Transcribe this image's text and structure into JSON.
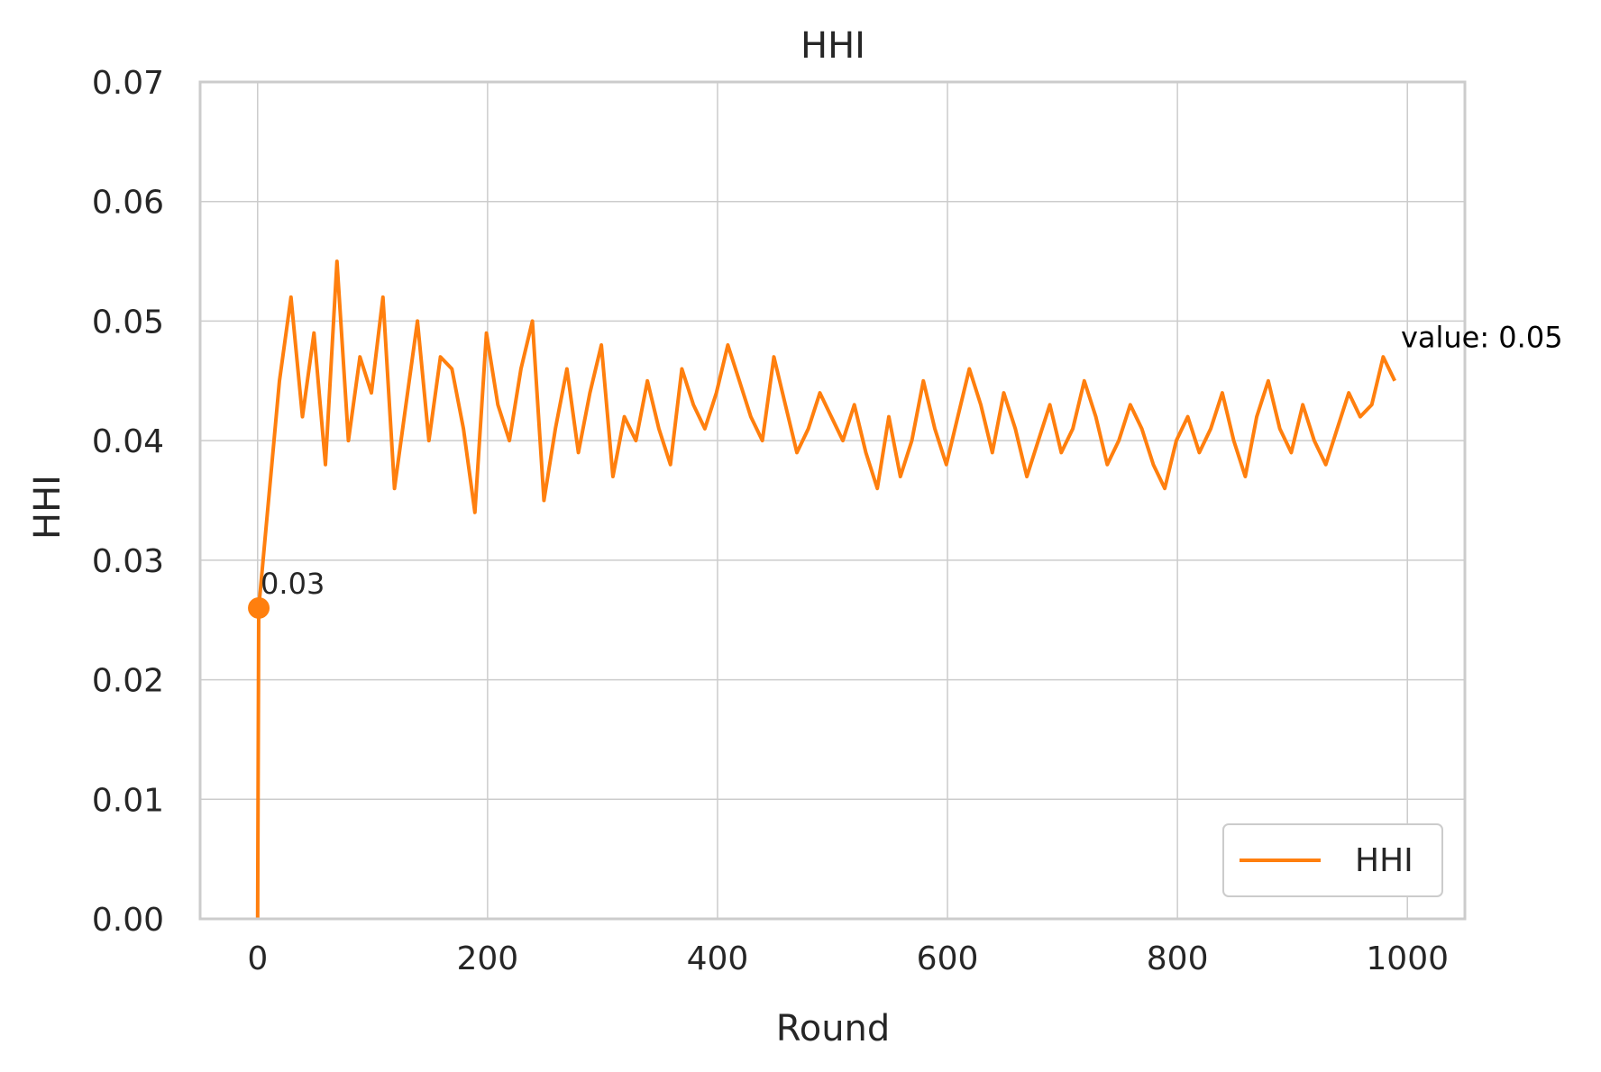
{
  "chart_data": {
    "type": "line",
    "title": "HHI",
    "xlabel": "Round",
    "ylabel": "HHI",
    "xlim": [
      -50,
      1050
    ],
    "ylim": [
      0,
      0.07
    ],
    "x_ticks": [
      0,
      200,
      400,
      600,
      800,
      1000
    ],
    "x_tick_labels": [
      "0",
      "200",
      "400",
      "600",
      "800",
      "1000"
    ],
    "y_ticks": [
      0,
      0.01,
      0.02,
      0.03,
      0.04,
      0.05,
      0.06,
      0.07
    ],
    "y_tick_labels": [
      "0.00",
      "0.01",
      "0.02",
      "0.03",
      "0.04",
      "0.05",
      "0.06",
      "0.07"
    ],
    "grid": true,
    "legend": {
      "position": "lower-right",
      "entries": [
        "HHI"
      ]
    },
    "colors": {
      "series": "#ff7f0e",
      "grid": "#cccccc",
      "frame": "#cccccc",
      "text": "#262626"
    },
    "series": [
      {
        "name": "HHI",
        "x_start": -1,
        "x_step": 10,
        "values_note_units": "HHI",
        "values": [
          0,
          0.026,
          0.045,
          0.052,
          0.042,
          0.049,
          0.038,
          0.055,
          0.04,
          0.047,
          0.044,
          0.052,
          0.036,
          0.043,
          0.05,
          0.04,
          0.047,
          0.046,
          0.041,
          0.034,
          0.049,
          0.043,
          0.04,
          0.046,
          0.05,
          0.035,
          0.041,
          0.046,
          0.039,
          0.044,
          0.048,
          0.037,
          0.042,
          0.04,
          0.045,
          0.041,
          0.038,
          0.046,
          0.043,
          0.041,
          0.044,
          0.048,
          0.045,
          0.042,
          0.04,
          0.047,
          0.043,
          0.039,
          0.041,
          0.044,
          0.042,
          0.04,
          0.043,
          0.039,
          0.036,
          0.042,
          0.037,
          0.04,
          0.045,
          0.041,
          0.038,
          0.042,
          0.046,
          0.043,
          0.039,
          0.044,
          0.041,
          0.037,
          0.04,
          0.043,
          0.039,
          0.041,
          0.045,
          0.042,
          0.038,
          0.04,
          0.043,
          0.041,
          0.038,
          0.036,
          0.04,
          0.042,
          0.039,
          0.041,
          0.044,
          0.04,
          0.037,
          0.042,
          0.045,
          0.041,
          0.039,
          0.043,
          0.04,
          0.038,
          0.041,
          0.044,
          0.042,
          0.043,
          0.047,
          0.045
        ],
        "min": {
          "x": 0,
          "y": 0.0
        },
        "max": {
          "x": 12,
          "y": 0.058
        }
      }
    ],
    "annotations": [
      {
        "text": "0.03",
        "x": 1,
        "y": 0.026,
        "marker": true,
        "color": "#262626"
      },
      {
        "text": "value: 0.05",
        "x": 999,
        "y": 0.046,
        "marker": false,
        "color": "#000000"
      }
    ]
  }
}
